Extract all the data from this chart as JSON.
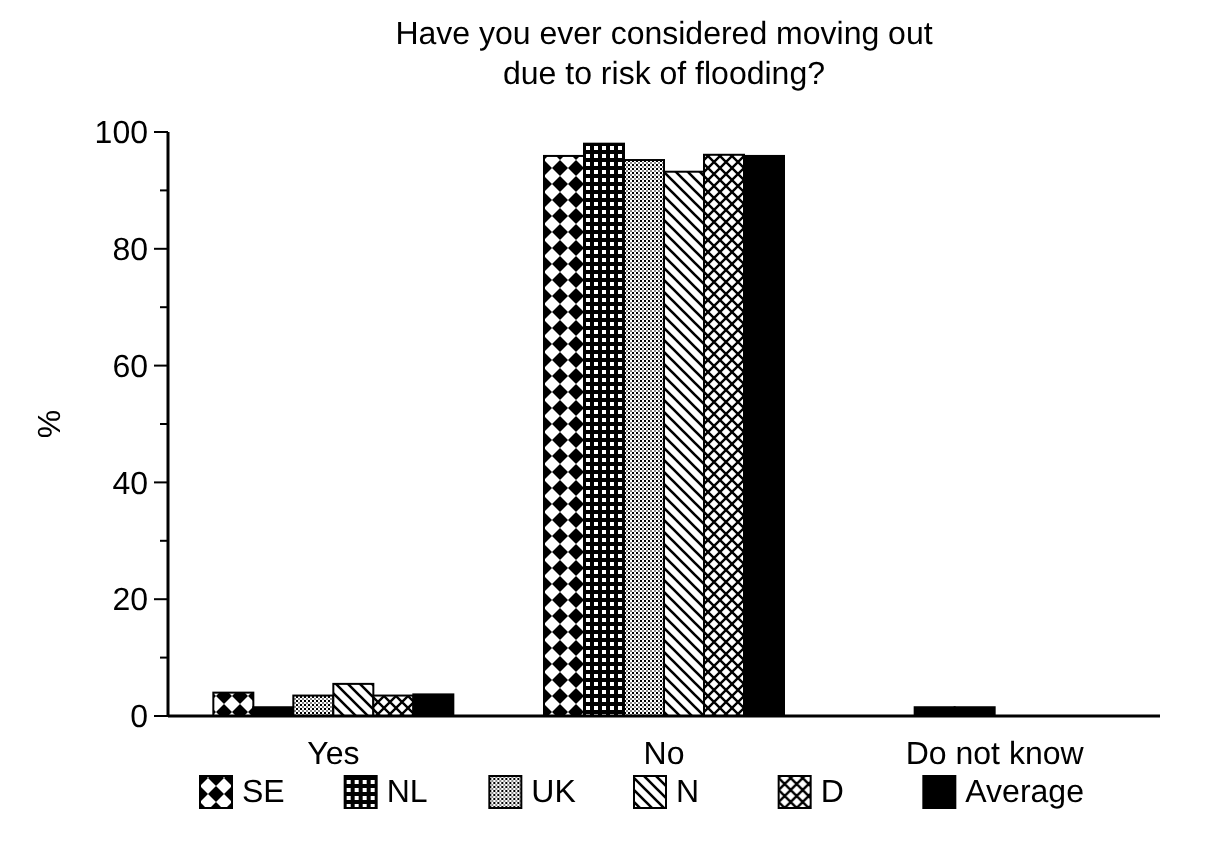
{
  "chart_data": {
    "type": "bar",
    "title": "Have you ever considered moving out\ndue to risk of flooding?",
    "ylabel": "%",
    "categories": [
      "Yes",
      "No",
      "Do not know"
    ],
    "series": [
      {
        "name": "SE",
        "color": "#000000",
        "values": [
          4,
          95.9,
          0
        ]
      },
      {
        "name": "NL",
        "color": "#000000",
        "values": [
          1.5,
          98,
          1.5
        ]
      },
      {
        "name": "UK",
        "color": "#000000",
        "values": [
          3.5,
          95.2,
          1.5
        ]
      },
      {
        "name": "N",
        "color": "#000000",
        "values": [
          5.5,
          93.2,
          0
        ]
      },
      {
        "name": "D",
        "color": "#000000",
        "values": [
          3.5,
          96.1,
          0
        ]
      },
      {
        "name": "Average",
        "color": "#000000",
        "values": [
          3.7,
          95.9,
          0
        ]
      }
    ],
    "ylim": [
      0,
      100
    ],
    "yticks": [
      0,
      {
        "value": 10,
        "label": null
      },
      20,
      {
        "value": 30,
        "label": null
      },
      40,
      {
        "value": 50,
        "label": null
      },
      60,
      {
        "value": 70,
        "label": null
      },
      80,
      {
        "value": 90,
        "label": null
      },
      100
    ],
    "grid": false,
    "legend": "bottom"
  }
}
